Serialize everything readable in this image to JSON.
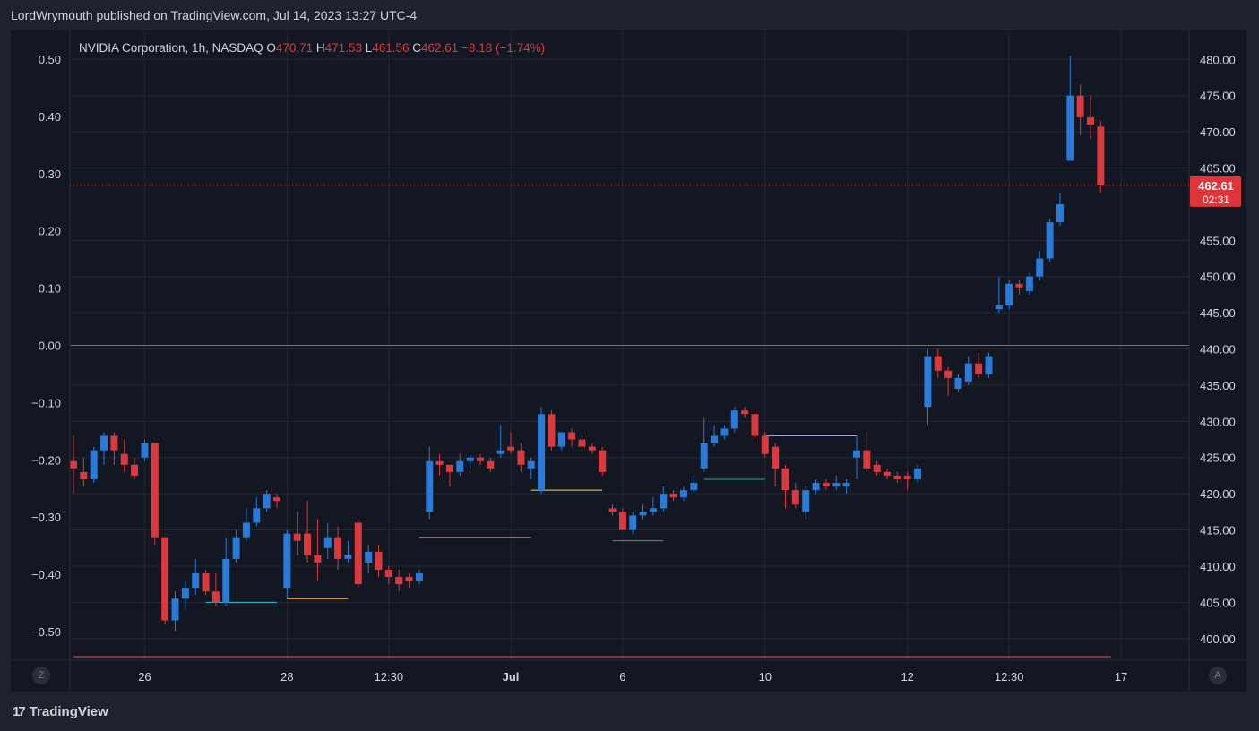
{
  "header": {
    "published": "LordWrymouth published on TradingView.com, Jul 14, 2023 13:27 UTC-4"
  },
  "footer": {
    "brand": "TradingView",
    "logo": "tradingview-logo-icon"
  },
  "buttons": {
    "left_label": "Z",
    "right_label": "A"
  },
  "legend": {
    "symbol": "NVIDIA Corporation, 1h, NASDAQ",
    "o_label": "O",
    "o_value": "470.71",
    "h_label": "H",
    "h_value": "471.53",
    "l_label": "L",
    "l_value": "461.56",
    "c_label": "C",
    "c_value": "462.61",
    "change": "−8.18 (−1.74%)"
  },
  "price_badge": {
    "price": "462.61",
    "countdown": "02:31"
  },
  "colors": {
    "up": "#2a7ad8",
    "down": "#d83a3f",
    "background": "#131722",
    "grid": "#232835",
    "text": "#d1d4dc",
    "zero_line": "#e0434e",
    "badge": "#e0343b"
  },
  "chart_data": {
    "type": "candlestick",
    "right_axis": {
      "ticks": [
        "480.00",
        "475.00",
        "470.00",
        "465.00",
        "455.00",
        "450.00",
        "445.00",
        "440.00",
        "435.00",
        "430.00",
        "425.00",
        "420.00",
        "415.00",
        "410.00",
        "405.00",
        "400.00"
      ],
      "range": [
        397,
        484
      ]
    },
    "left_axis": {
      "ticks": [
        "0.50",
        "0.40",
        "0.30",
        "0.20",
        "0.10",
        "0.00",
        "−0.10",
        "−0.20",
        "−0.30",
        "−0.40",
        "−0.50"
      ],
      "range": [
        -0.55,
        0.55
      ]
    },
    "x_ticks": [
      "26",
      "28",
      "12:30",
      "Jul",
      "6",
      "10",
      "12",
      "12:30",
      "17"
    ],
    "last_price": 462.61,
    "candles": [
      [
        424.5,
        423.5,
        428.0,
        420.0
      ],
      [
        423.0,
        422.0,
        425.0,
        421.0
      ],
      [
        422.0,
        426.0,
        426.5,
        421.5
      ],
      [
        426.0,
        428.0,
        428.5,
        424.0
      ],
      [
        428.0,
        426.0,
        428.5,
        424.0
      ],
      [
        425.5,
        424.0,
        427.5,
        423.0
      ],
      [
        424.0,
        422.5,
        425.0,
        422.0
      ],
      [
        425.0,
        427.0,
        427.5,
        424.5
      ],
      [
        427.0,
        414.0,
        427.0,
        413.0
      ],
      [
        414.0,
        402.5,
        414.0,
        402.0
      ],
      [
        402.5,
        405.5,
        406.5,
        401.0
      ],
      [
        405.5,
        407.0,
        408.0,
        404.0
      ],
      [
        407.0,
        409.0,
        411.0,
        406.0
      ],
      [
        409.0,
        406.5,
        409.5,
        406.0
      ],
      [
        406.5,
        405.0,
        409.0,
        404.5
      ],
      [
        405.0,
        411.0,
        414.0,
        404.5
      ],
      [
        411.0,
        414.0,
        415.0,
        410.5
      ],
      [
        414.0,
        416.0,
        418.0,
        413.5
      ],
      [
        416.0,
        418.0,
        419.5,
        415.5
      ],
      [
        418.0,
        420.0,
        420.5,
        417.5
      ],
      [
        419.5,
        419.0,
        420.0,
        418.0
      ],
      [
        407.0,
        414.5,
        415.0,
        405.5
      ],
      [
        414.5,
        413.5,
        417.5,
        411.5
      ],
      [
        414.5,
        411.5,
        419.0,
        410.5
      ],
      [
        411.5,
        410.5,
        416.5,
        408.0
      ],
      [
        412.5,
        414.0,
        416.0,
        411.0
      ],
      [
        414.0,
        411.0,
        415.5,
        409.5
      ],
      [
        411.0,
        411.5,
        413.5,
        410.5
      ],
      [
        416.0,
        407.5,
        416.5,
        407.0
      ],
      [
        410.5,
        412.0,
        413.0,
        409.0
      ],
      [
        412.0,
        409.5,
        413.0,
        408.5
      ],
      [
        409.5,
        408.5,
        410.0,
        407.5
      ],
      [
        408.5,
        407.5,
        409.5,
        406.5
      ],
      [
        408.5,
        408.0,
        409.0,
        407.0
      ],
      [
        408.0,
        409.0,
        409.5,
        407.5
      ],
      [
        417.5,
        424.5,
        426.5,
        416.5
      ],
      [
        424.5,
        424.0,
        425.5,
        422.5
      ],
      [
        424.0,
        423.0,
        424.0,
        421.0
      ],
      [
        423.0,
        424.5,
        425.5,
        422.5
      ],
      [
        424.5,
        425.0,
        425.5,
        423.5
      ],
      [
        425.0,
        424.5,
        425.5,
        424.0
      ],
      [
        424.5,
        423.5,
        425.0,
        423.0
      ],
      [
        425.5,
        426.0,
        429.5,
        425.0
      ],
      [
        426.5,
        426.0,
        428.5,
        425.5
      ],
      [
        426.0,
        424.0,
        427.0,
        423.0
      ],
      [
        423.5,
        424.5,
        425.0,
        422.0
      ],
      [
        420.5,
        431.0,
        432.0,
        420.0
      ],
      [
        431.0,
        426.5,
        431.5,
        426.0
      ],
      [
        426.5,
        428.5,
        428.5,
        426.0
      ],
      [
        428.5,
        427.5,
        429.0,
        426.5
      ],
      [
        427.5,
        426.5,
        428.0,
        426.0
      ],
      [
        426.5,
        426.0,
        427.0,
        425.5
      ],
      [
        426.0,
        423.0,
        426.5,
        422.5
      ],
      [
        418.0,
        417.5,
        418.5,
        417.0
      ],
      [
        417.5,
        415.0,
        418.0,
        415.0
      ],
      [
        415.0,
        417.0,
        417.5,
        414.5
      ],
      [
        417.0,
        417.5,
        418.5,
        416.5
      ],
      [
        417.5,
        418.0,
        419.5,
        417.0
      ],
      [
        418.0,
        420.0,
        421.0,
        417.5
      ],
      [
        420.0,
        419.5,
        420.5,
        419.0
      ],
      [
        419.5,
        420.5,
        421.0,
        419.0
      ],
      [
        420.5,
        421.5,
        422.5,
        420.0
      ],
      [
        423.5,
        427.0,
        430.5,
        423.0
      ],
      [
        427.0,
        428.0,
        429.5,
        426.5
      ],
      [
        428.0,
        429.0,
        429.5,
        427.5
      ],
      [
        429.0,
        431.5,
        432.0,
        428.5
      ],
      [
        431.5,
        431.0,
        432.0,
        430.5
      ],
      [
        431.0,
        428.0,
        431.5,
        427.5
      ],
      [
        428.0,
        425.5,
        428.5,
        425.0
      ],
      [
        426.5,
        423.5,
        427.0,
        421.0
      ],
      [
        423.5,
        420.5,
        424.0,
        418.0
      ],
      [
        420.5,
        418.5,
        421.5,
        418.0
      ],
      [
        417.5,
        420.5,
        421.0,
        416.5
      ],
      [
        420.5,
        421.5,
        422.0,
        420.0
      ],
      [
        421.5,
        421.0,
        422.0,
        420.5
      ],
      [
        421.0,
        421.5,
        422.5,
        420.5
      ],
      [
        421.0,
        421.5,
        422.0,
        420.0
      ],
      [
        425.0,
        426.0,
        428.0,
        422.0
      ],
      [
        426.0,
        423.5,
        428.5,
        423.0
      ],
      [
        424.0,
        423.0,
        424.5,
        422.5
      ],
      [
        423.0,
        422.5,
        423.5,
        422.0
      ],
      [
        422.5,
        422.0,
        423.0,
        421.5
      ],
      [
        422.5,
        422.0,
        423.0,
        420.5
      ],
      [
        422.0,
        423.5,
        424.0,
        421.5
      ],
      [
        432.0,
        439.0,
        440.0,
        429.5
      ],
      [
        439.0,
        437.0,
        440.0,
        436.0
      ],
      [
        437.0,
        436.0,
        437.5,
        433.5
      ],
      [
        434.5,
        436.0,
        436.5,
        434.0
      ],
      [
        435.5,
        438.0,
        439.0,
        435.0
      ],
      [
        438.0,
        436.5,
        439.5,
        436.0
      ],
      [
        436.5,
        439.0,
        439.5,
        436.0
      ],
      [
        445.5,
        446.0,
        450.0,
        445.0
      ],
      [
        446.0,
        449.0,
        449.5,
        445.5
      ],
      [
        449.0,
        448.5,
        449.5,
        447.5
      ],
      [
        448.0,
        450.0,
        450.5,
        447.5
      ],
      [
        450.0,
        452.5,
        453.5,
        449.5
      ],
      [
        452.5,
        457.5,
        458.0,
        452.0
      ],
      [
        457.5,
        460.0,
        461.5,
        457.0
      ],
      [
        466.0,
        475.0,
        480.5,
        466.0
      ],
      [
        475.0,
        472.0,
        476.5,
        469.5
      ],
      [
        472.0,
        471.0,
        475.0,
        469.0
      ],
      [
        470.71,
        462.61,
        471.53,
        461.56
      ]
    ],
    "levels": [
      {
        "price": 405.0,
        "from": 13,
        "to": 20,
        "color": "#26c6da"
      },
      {
        "price": 405.5,
        "from": 21,
        "to": 27,
        "color": "#f5a623"
      },
      {
        "price": 414.0,
        "from": 34,
        "to": 45,
        "color": "#ef5350"
      },
      {
        "price": 420.5,
        "from": 45,
        "to": 52,
        "color": "#ffd54f"
      },
      {
        "price": 413.5,
        "from": 53,
        "to": 58,
        "color": "#26a69a"
      },
      {
        "price": 422.0,
        "from": 62,
        "to": 68,
        "color": "#26a69a"
      },
      {
        "price": 428.0,
        "from": 68,
        "to": 77,
        "color": "#b39ddb"
      },
      {
        "price": 397.5,
        "from": 0,
        "to": 102,
        "color": "#ef5350"
      }
    ]
  }
}
